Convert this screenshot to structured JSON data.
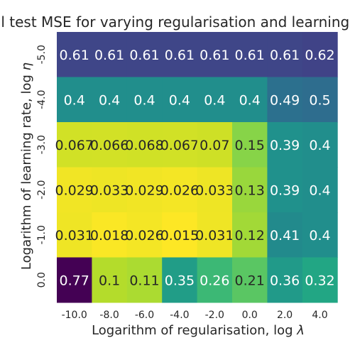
{
  "chart_data": {
    "type": "heatmap",
    "title": "Final test MSE for varying regularisation and learning rate",
    "xlabel": "Logarithm of regularisation, log λ",
    "ylabel": "Logarithm of learning rate, log η",
    "x_ticks": [
      "-10.0",
      "-8.0",
      "-6.0",
      "-4.0",
      "-2.0",
      "0.0",
      "2.0",
      "4.0"
    ],
    "y_ticks": [
      "-5.0",
      "-4.0",
      "-3.0",
      "-2.0",
      "-1.0",
      "0.0"
    ],
    "values": [
      [
        0.61,
        0.61,
        0.61,
        0.61,
        0.61,
        0.61,
        0.61,
        0.62
      ],
      [
        0.4,
        0.4,
        0.4,
        0.4,
        0.4,
        0.4,
        0.49,
        0.5
      ],
      [
        0.067,
        0.066,
        0.068,
        0.067,
        0.07,
        0.15,
        0.39,
        0.4
      ],
      [
        0.029,
        0.033,
        0.029,
        0.026,
        0.033,
        0.13,
        0.39,
        0.4
      ],
      [
        0.031,
        0.018,
        0.026,
        0.015,
        0.031,
        0.12,
        0.41,
        0.4
      ],
      [
        0.77,
        0.1,
        0.11,
        0.35,
        0.26,
        0.21,
        0.36,
        0.32
      ]
    ],
    "colormap": "viridis_r",
    "annotated": true
  }
}
